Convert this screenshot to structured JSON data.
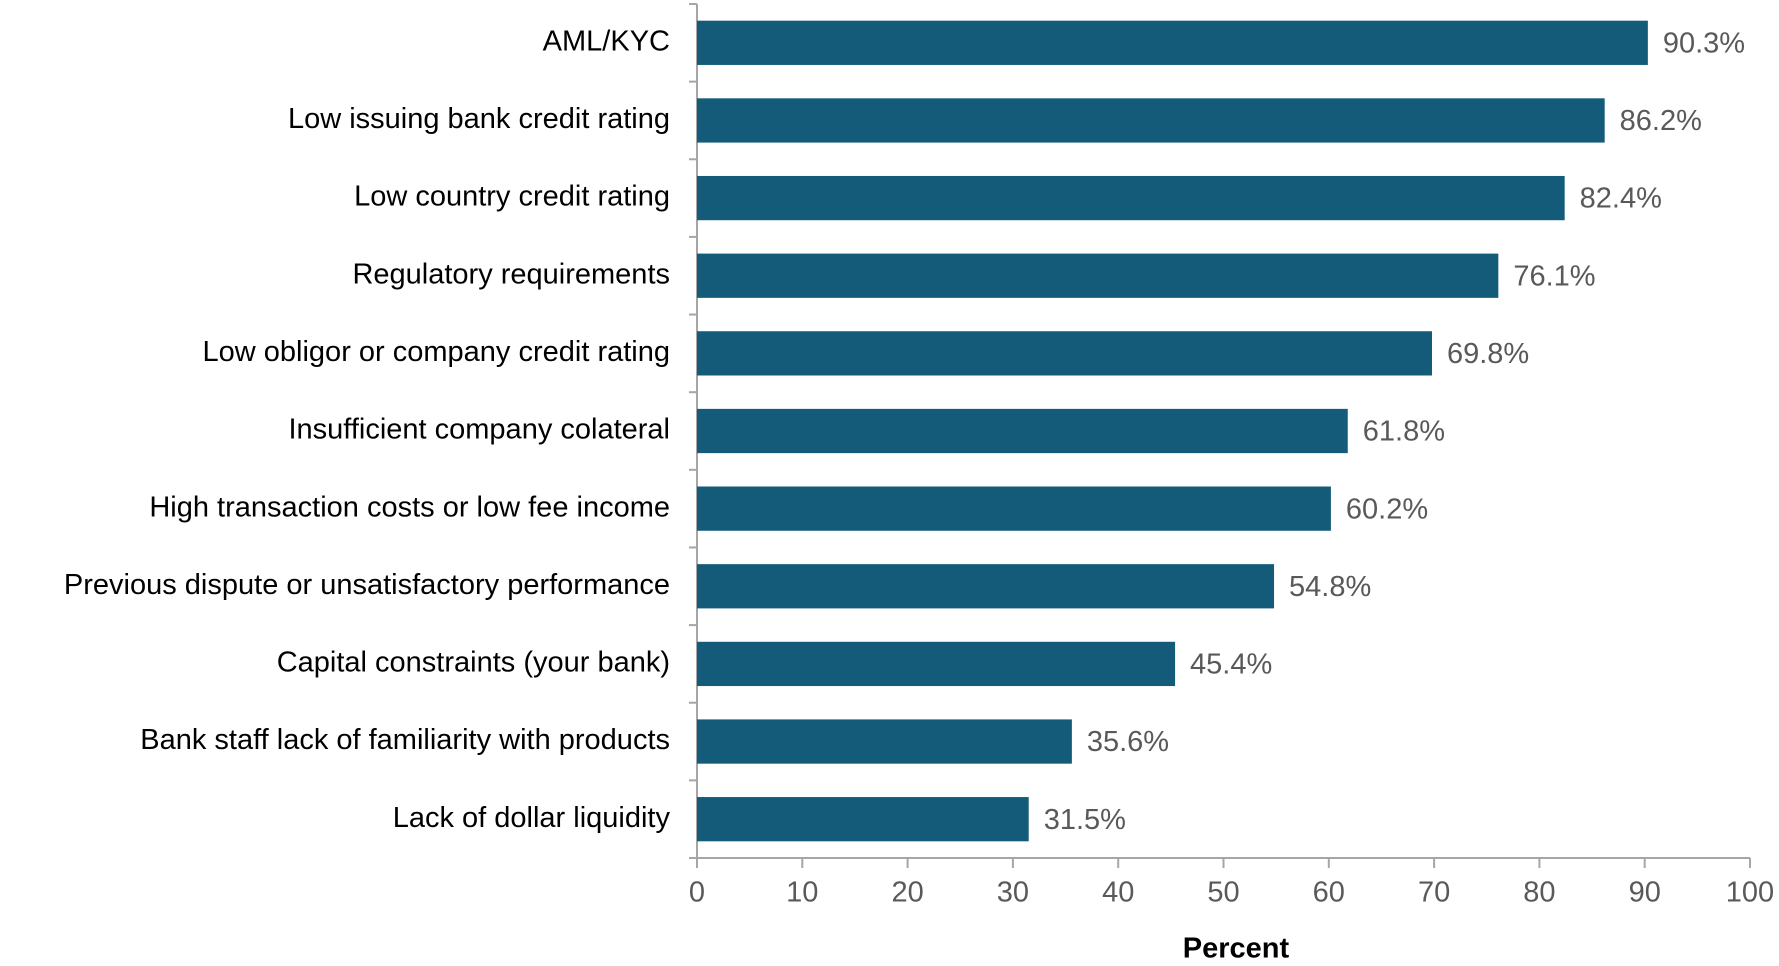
{
  "chart_data": {
    "type": "barh",
    "x_label": "Percent",
    "categories": [
      "AML/KYC",
      "Low issuing bank credit rating",
      "Low country credit rating",
      "Regulatory requirements",
      "Low obligor or company credit rating",
      "Insufficient company colateral",
      "High transaction costs or low fee income",
      "Previous dispute or unsatisfactory performance",
      "Capital constraints (your bank)",
      "Bank staff lack of familiarity with products",
      "Lack of dollar liquidity"
    ],
    "values": [
      90.3,
      86.2,
      82.4,
      76.1,
      69.8,
      61.8,
      60.2,
      54.8,
      45.4,
      35.6,
      31.5
    ],
    "value_labels": [
      "90.3%",
      "86.2%",
      "82.4%",
      "76.1%",
      "69.8%",
      "61.8%",
      "60.2%",
      "54.8%",
      "45.4%",
      "35.6%",
      "31.5%"
    ],
    "color": "#135b78",
    "xlim": [
      0,
      100
    ],
    "xticks": [
      0,
      10,
      20,
      30,
      40,
      50,
      60,
      70,
      80,
      90,
      100
    ],
    "grid": false
  }
}
